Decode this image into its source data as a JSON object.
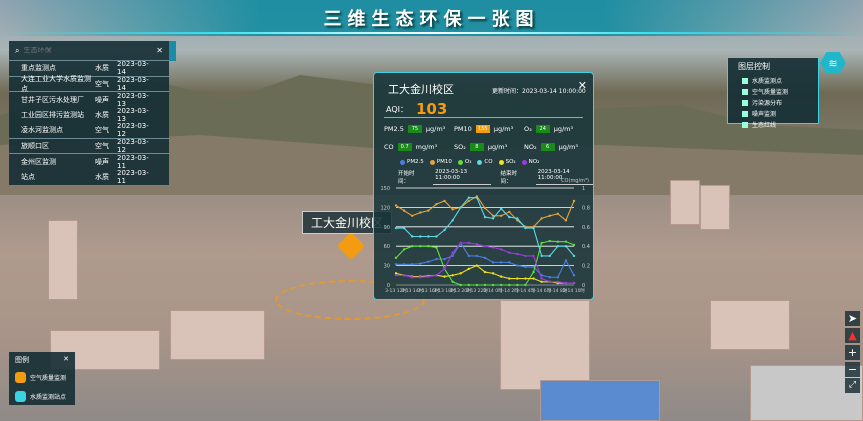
{
  "header": {
    "title": "三维生态环保一张图"
  },
  "search": {
    "placeholder": "生态环保",
    "rows": [
      {
        "name": "重点监测点",
        "type": "水质",
        "date": "2023-03-14"
      },
      {
        "name": "大连工业大学水质监测点",
        "type": "空气",
        "date": "2023-03-14"
      },
      {
        "name": "甘井子区污水处理厂",
        "type": "噪声",
        "date": "2023-03-13"
      },
      {
        "name": "工业园区排污监测站",
        "type": "水质",
        "date": "2023-03-13"
      },
      {
        "name": "凌水河监测点",
        "type": "空气",
        "date": "2023-03-12"
      },
      {
        "name": "旅顺口区",
        "type": "空气",
        "date": "2023-03-12"
      },
      {
        "name": "金州区监测",
        "type": "噪声",
        "date": "2023-03-11"
      },
      {
        "name": "站点",
        "type": "水质",
        "date": "2023-03-11"
      }
    ]
  },
  "popup": {
    "title": "工大金川校区",
    "update": "更新时间：2023-03-14 10:00:00",
    "aqi_label": "AQI：",
    "aqi": "103",
    "pollutants": [
      {
        "name": "PM2.5",
        "value": "75",
        "unit": "μg/m³",
        "level": "good"
      },
      {
        "name": "PM10",
        "value": "155",
        "unit": "μg/m³",
        "level": "warn"
      },
      {
        "name": "O₃",
        "value": "24",
        "unit": "μg/m³",
        "level": "good"
      },
      {
        "name": "CO",
        "value": "0.7",
        "unit": "mg/m³",
        "level": "good"
      },
      {
        "name": "SO₂",
        "value": "8",
        "unit": "μg/m³",
        "level": "good"
      },
      {
        "name": "NO₂",
        "value": "6",
        "unit": "μg/m³",
        "level": "good"
      }
    ],
    "start_label": "开始时间：",
    "start": "2023-03-13 11:00:00",
    "end_label": "结束时间：",
    "end": "2023-03-14 11:00:00"
  },
  "chart_data": {
    "type": "line",
    "y2label": "CO(mg/m³)",
    "ylim": [
      0,
      150
    ],
    "y2lim": [
      0,
      1
    ],
    "yticks": [
      "0",
      "30",
      "60",
      "90",
      "120",
      "150"
    ],
    "y2ticks": [
      "0",
      "0.2",
      "0.4",
      "0.6",
      "0.8",
      "1"
    ],
    "xticks": [
      "3-13 12时",
      "3-13 14时",
      "3-13 16时",
      "3-13 18时",
      "3-13 20时",
      "3-13 22时",
      "3-14 0时",
      "3-14 2时",
      "3-14 4时",
      "3-14 6时",
      "3-14 8时",
      "3-14 10时"
    ],
    "series": [
      {
        "name": "PM2.5",
        "color": "#4a7fe0",
        "values": [
          32,
          32,
          32,
          33,
          36,
          40,
          40,
          45,
          65,
          45,
          45,
          42,
          35,
          35,
          35,
          30,
          28,
          28,
          15,
          12,
          12,
          38,
          15
        ]
      },
      {
        "name": "PM10",
        "color": "#e8a03a",
        "values": [
          123,
          115,
          107,
          112,
          115,
          125,
          130,
          117,
          120,
          130,
          137,
          119,
          107,
          107,
          113,
          100,
          90,
          90,
          103,
          107,
          110,
          100,
          130
        ]
      },
      {
        "name": "O₃",
        "color": "#5fe03a",
        "values": [
          42,
          55,
          60,
          60,
          60,
          58,
          25,
          5,
          0,
          0,
          0,
          0,
          0,
          0,
          0,
          0,
          0,
          20,
          65,
          68,
          67,
          67,
          62
        ]
      },
      {
        "name": "CO",
        "color": "#5ad8e6",
        "values": [
          88,
          88,
          75,
          75,
          75,
          75,
          85,
          100,
          120,
          135,
          135,
          105,
          103,
          118,
          105,
          103,
          88,
          88,
          45,
          45,
          60,
          60,
          45
        ]
      },
      {
        "name": "SO₂",
        "color": "#f0e020",
        "values": [
          18,
          15,
          13,
          13,
          14,
          15,
          13,
          15,
          18,
          25,
          30,
          20,
          18,
          13,
          10,
          10,
          10,
          10,
          5,
          5,
          3,
          3,
          3
        ]
      },
      {
        "name": "NO₂",
        "color": "#9b3ae0",
        "values": [
          15,
          15,
          12,
          12,
          13,
          15,
          25,
          50,
          65,
          65,
          63,
          60,
          58,
          55,
          50,
          48,
          45,
          45,
          10,
          5,
          5,
          3,
          3
        ]
      }
    ]
  },
  "layers": {
    "title": "图层控制",
    "items": [
      "水质监测点",
      "空气质量监测",
      "污染源分布",
      "噪声监测",
      "生态红线"
    ]
  },
  "legend": {
    "title": "图例",
    "items": [
      "空气质量监测",
      "水质监测站点"
    ]
  },
  "map": {
    "label": "工大金川校区"
  }
}
